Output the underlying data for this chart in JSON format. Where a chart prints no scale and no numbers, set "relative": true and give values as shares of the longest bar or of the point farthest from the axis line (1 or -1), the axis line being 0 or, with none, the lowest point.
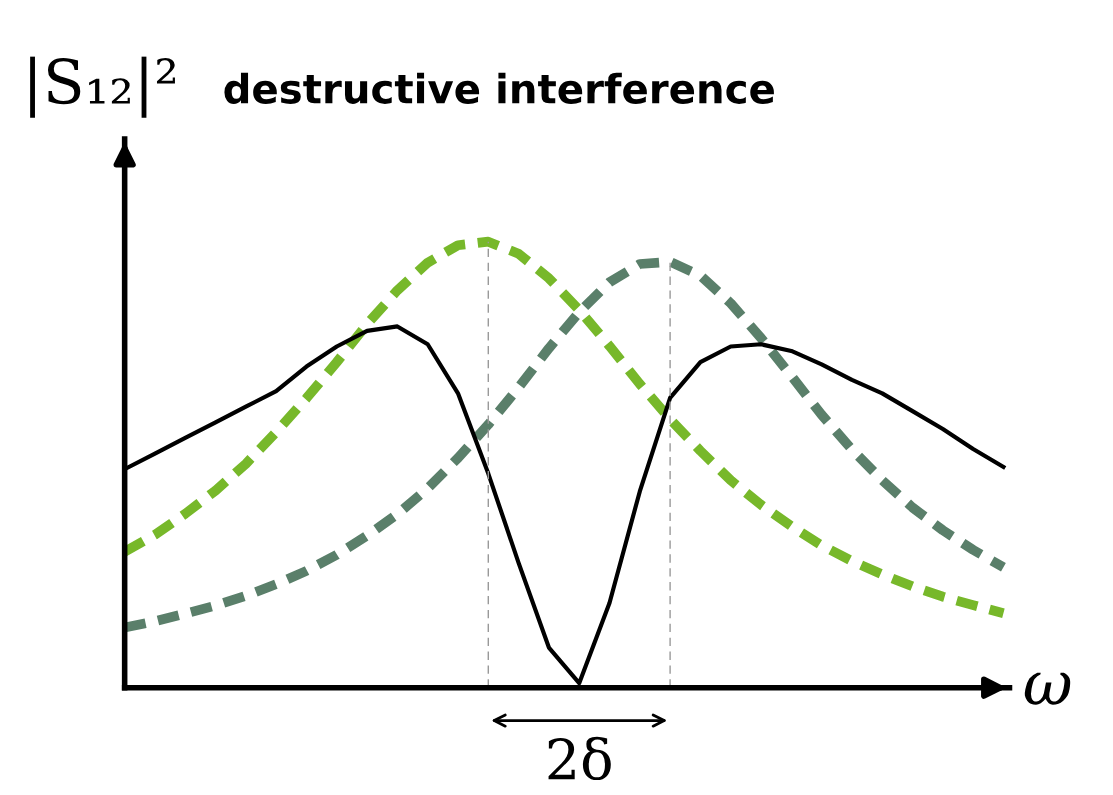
{
  "chart_data": {
    "type": "line",
    "relative": true,
    "title": "destructive interference",
    "ylabel": "|S₁₂|²",
    "xlabel": "ω",
    "categories": [
      null,
      null,
      null,
      null,
      null,
      null,
      null,
      null,
      null,
      null,
      null,
      null,
      null,
      null,
      null,
      null,
      null,
      null,
      null,
      null,
      null,
      null,
      null,
      null,
      null,
      null,
      null,
      null,
      null,
      null
    ],
    "series": [
      {
        "color": "#77b82a",
        "line_style": "dashed",
        "values": [
          0.305,
          0.343,
          0.39,
          0.442,
          0.502,
          0.573,
          0.649,
          0.73,
          0.815,
          0.891,
          0.953,
          0.992,
          1.0,
          0.973,
          0.918,
          0.847,
          0.766,
          0.681,
          0.602,
          0.531,
          0.465,
          0.41,
          0.362,
          0.319,
          0.284,
          0.254,
          0.227,
          0.204,
          0.185,
          0.167
        ]
      },
      {
        "color": "#5a7f6a",
        "line_style": "dashed",
        "values": [
          0.135,
          0.149,
          0.166,
          0.184,
          0.206,
          0.232,
          0.262,
          0.298,
          0.341,
          0.389,
          0.447,
          0.515,
          0.59,
          0.673,
          0.761,
          0.842,
          0.909,
          0.95,
          0.955,
          0.924,
          0.862,
          0.784,
          0.699,
          0.612,
          0.534,
          0.465,
          0.404,
          0.353,
          0.309,
          0.27
        ]
      },
      {
        "color": "#000000",
        "line_style": "solid",
        "values": [
          0.49,
          0.525,
          0.56,
          0.595,
          0.63,
          0.665,
          0.72,
          0.765,
          0.8,
          0.81,
          0.77,
          0.66,
          0.48,
          0.28,
          0.09,
          0.01,
          0.19,
          0.44,
          0.65,
          0.73,
          0.765,
          0.77,
          0.755,
          0.725,
          0.69,
          0.66,
          0.62,
          0.58,
          0.535,
          0.495
        ]
      }
    ],
    "annotations": [
      "2δ"
    ],
    "marker": "none",
    "legend": false
  }
}
